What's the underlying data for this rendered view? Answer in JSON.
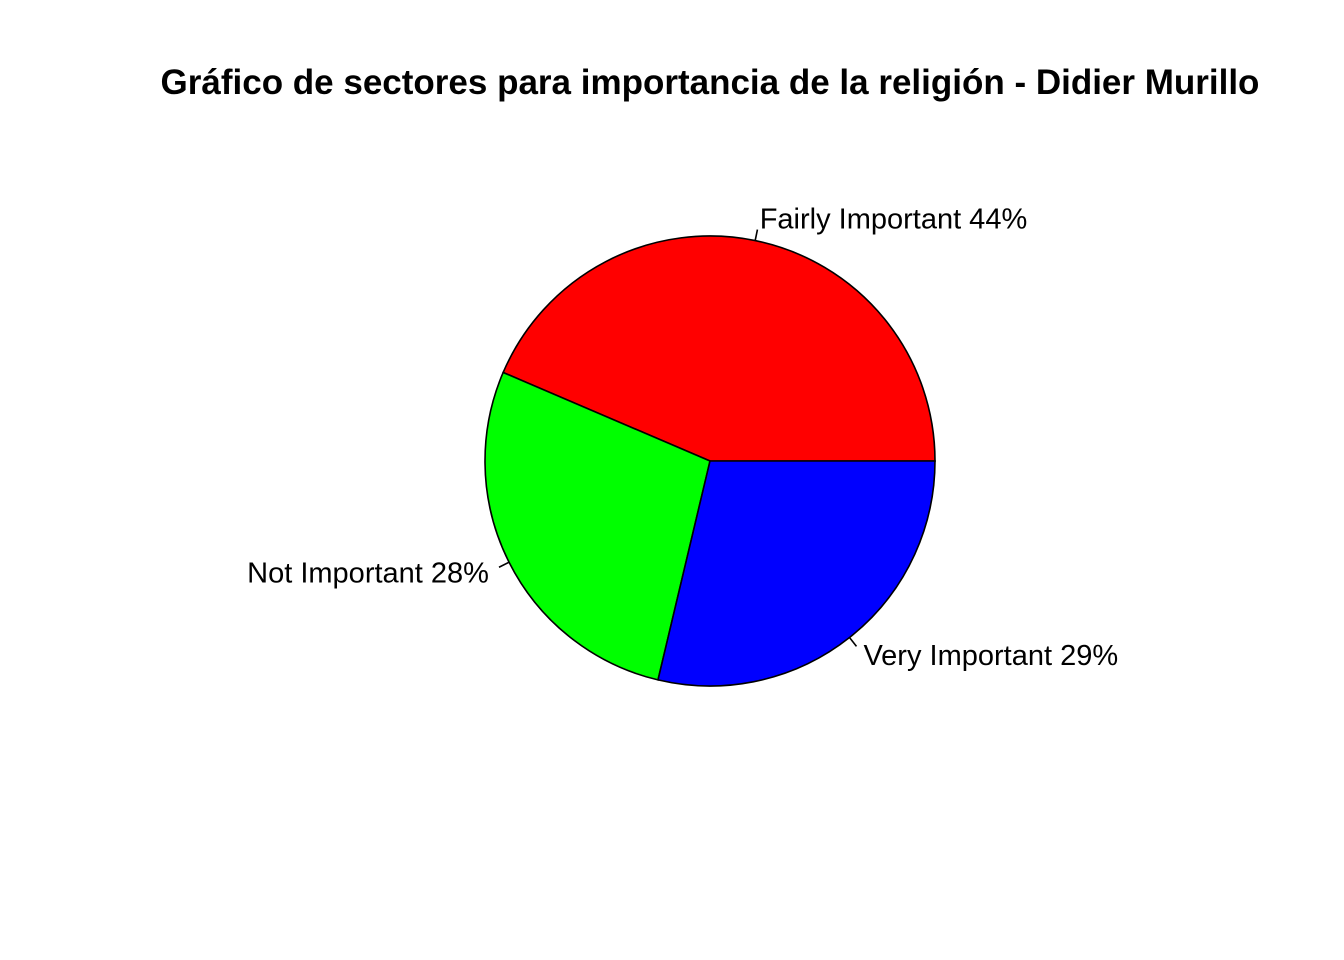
{
  "chart_data": {
    "type": "pie",
    "title": "Gráfico de sectores para importancia de la religión - Didier Murillo",
    "start_angle_deg": 0,
    "direction": "counterclockwise",
    "slices": [
      {
        "label": "Fairly Important  44%",
        "value": 44,
        "color": "#FF0000"
      },
      {
        "label": "Not Important 28%",
        "value": 28,
        "color": "#00FF00"
      },
      {
        "label": "Very Important  29%",
        "value": 29,
        "color": "#0000FF"
      }
    ],
    "legend": "none"
  }
}
